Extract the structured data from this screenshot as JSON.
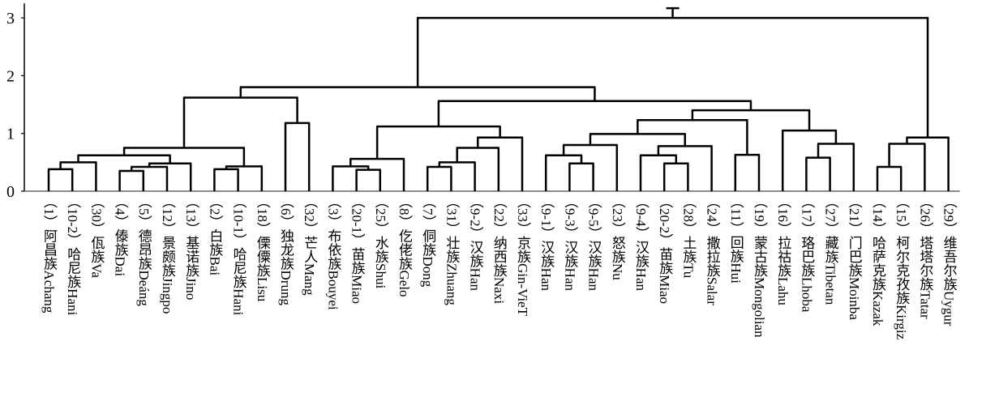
{
  "chart_data": {
    "type": "dendrogram",
    "title": "",
    "xlabel": "",
    "ylabel": "",
    "ylim": [
      0,
      3.25
    ],
    "yticks": [
      "0",
      "1",
      "2",
      "3"
    ],
    "grid": false,
    "leaves": [
      {
        "id": "1",
        "label": "（1）阿昌族Achang"
      },
      {
        "id": "10-2",
        "label": "（10-2）哈尼族Hani"
      },
      {
        "id": "30",
        "label": "（30）佤族Va"
      },
      {
        "id": "4",
        "label": "（4）傣族Dai"
      },
      {
        "id": "5",
        "label": "（5）德昂族Deáng"
      },
      {
        "id": "12",
        "label": "（12）景颇族Jingpo"
      },
      {
        "id": "13",
        "label": "（13）基诺族Jino"
      },
      {
        "id": "2",
        "label": "（2）白族Bai"
      },
      {
        "id": "10-1",
        "label": "（10-1）哈尼族Hani"
      },
      {
        "id": "18",
        "label": "（18）傈僳族Lisu"
      },
      {
        "id": "6",
        "label": "（6）独龙族Drung"
      },
      {
        "id": "32",
        "label": "（32）芒人Mang"
      },
      {
        "id": "3",
        "label": "（3）布依族Bouyei"
      },
      {
        "id": "20-1",
        "label": "（20-1）苗族Miao"
      },
      {
        "id": "25",
        "label": "（25）水族Shui"
      },
      {
        "id": "8",
        "label": "（8）仡佬族Gelo"
      },
      {
        "id": "7",
        "label": "（7）侗族Dong"
      },
      {
        "id": "31",
        "label": "（31）壮族Zhuang"
      },
      {
        "id": "9-2",
        "label": "（9-2）汉族Han"
      },
      {
        "id": "22",
        "label": "（22）纳西族Naxi"
      },
      {
        "id": "33",
        "label": "（33）京族Gin-VieT"
      },
      {
        "id": "9-1",
        "label": "（9-1）汉族Han"
      },
      {
        "id": "9-3",
        "label": "（9-3）汉族Han"
      },
      {
        "id": "9-5",
        "label": "（9-5）汉族Han"
      },
      {
        "id": "23",
        "label": "（23）怒族Nu"
      },
      {
        "id": "9-4",
        "label": "（9-4）汉族Han"
      },
      {
        "id": "20-2",
        "label": "（20-2）苗族Miao"
      },
      {
        "id": "28",
        "label": "（28）土族Tu"
      },
      {
        "id": "24",
        "label": "（24）撒拉族Salar"
      },
      {
        "id": "11",
        "label": "（11）回族Hui"
      },
      {
        "id": "19",
        "label": "（19）蒙古族Mongolian"
      },
      {
        "id": "16",
        "label": "（16）拉祜族Lahu"
      },
      {
        "id": "17",
        "label": "（17）珞巴族Lhoba"
      },
      {
        "id": "27",
        "label": "（27）藏族Tibetan"
      },
      {
        "id": "21",
        "label": "（21）门巴族Moinba"
      },
      {
        "id": "14",
        "label": "（14）哈萨克族Kazak"
      },
      {
        "id": "15",
        "label": "（15）柯尔克孜族Kirgiz"
      },
      {
        "id": "26",
        "label": "（26）塔塔尔族Tatar"
      },
      {
        "id": "29",
        "label": "（29）维吾尔族Uygur"
      }
    ],
    "tree": {
      "h": 3.0,
      "c": [
        {
          "h": 1.8,
          "c": [
            {
              "h": 1.62,
              "c": [
                {
                  "h": 0.75,
                  "c": [
                    {
                      "h": 0.62,
                      "c": [
                        {
                          "h": 0.5,
                          "c": [
                            {
                              "h": 0.38,
                              "c": [
                                0,
                                1
                              ]
                            },
                            2
                          ]
                        },
                        {
                          "h": 0.48,
                          "c": [
                            {
                              "h": 0.42,
                              "c": [
                                {
                                  "h": 0.35,
                                  "c": [
                                    3,
                                    4
                                  ]
                                },
                                5
                              ]
                            },
                            6
                          ]
                        }
                      ]
                    },
                    {
                      "h": 0.43,
                      "c": [
                        {
                          "h": 0.38,
                          "c": [
                            7,
                            8
                          ]
                        },
                        9
                      ]
                    }
                  ]
                },
                {
                  "h": 1.18,
                  "c": [
                    10,
                    11
                  ]
                }
              ]
            },
            {
              "h": 1.6,
              "c": [
                {
                  "h": 1.56,
                  "c": [
                    {
                      "h": 1.12,
                      "c": [
                        {
                          "h": 0.56,
                          "c": [
                            {
                              "h": 0.43,
                              "c": [
                                12,
                                {
                                  "h": 0.37,
                                  "c": [
                                    13,
                                    14
                                  ]
                                }
                              ]
                            },
                            15
                          ]
                        },
                        {
                          "h": 0.93,
                          "c": [
                            {
                              "h": 0.75,
                              "c": [
                                {
                                  "h": 0.5,
                                  "c": [
                                    {
                                      "h": 0.42,
                                      "c": [
                                        16,
                                        17
                                      ]
                                    },
                                    18
                                  ]
                                },
                                19
                              ]
                            },
                            20
                          ]
                        }
                      ]
                    },
                    {
                      "h": 1.4,
                      "c": [
                        {
                          "h": 1.23,
                          "c": [
                            {
                              "h": 0.99,
                              "c": [
                                {
                                  "h": 0.8,
                                  "c": [
                                    {
                                      "h": 0.62,
                                      "c": [
                                        21,
                                        {
                                          "h": 0.48,
                                          "c": [
                                            22,
                                            23
                                          ]
                                        }
                                      ]
                                    },
                                    24
                                  ]
                                },
                                {
                                  "h": 0.78,
                                  "c": [
                                    {
                                      "h": 0.62,
                                      "c": [
                                        25,
                                        {
                                          "h": 0.48,
                                          "c": [
                                            26,
                                            27
                                          ]
                                        }
                                      ]
                                    },
                                    28
                                  ]
                                }
                              ]
                            },
                            {
                              "h": 0.63,
                              "c": [
                                29,
                                30
                              ]
                            }
                          ]
                        },
                        {
                          "h": 1.05,
                          "c": [
                            31,
                            {
                              "h": 0.82,
                              "c": [
                                {
                                  "h": 0.58,
                                  "c": [
                                    32,
                                    33
                                  ]
                                },
                                34
                              ]
                            }
                          ]
                        }
                      ]
                    }
                  ]
                }
              ]
            }
          ]
        },
        {
          "h": 0.93,
          "c": [
            {
              "h": 0.82,
              "c": [
                {
                  "h": 0.42,
                  "c": [
                    35,
                    36
                  ]
                },
                37
              ]
            },
            38
          ]
        }
      ]
    }
  }
}
